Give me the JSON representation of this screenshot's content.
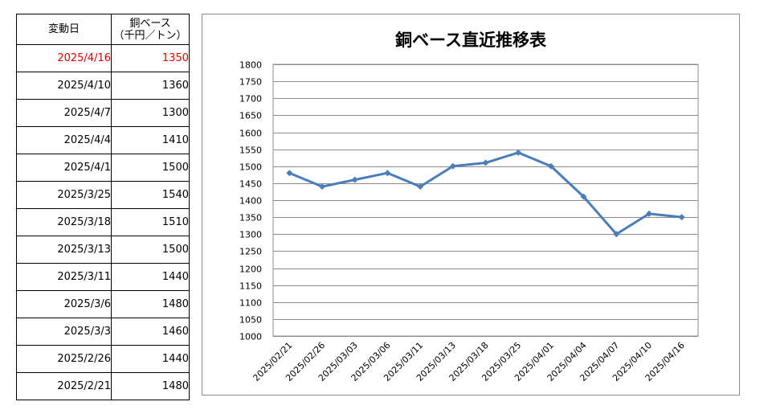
{
  "table": {
    "header_date": "変動日",
    "header_price_line1": "銅ベース",
    "header_price_line2": "（千円／トン）",
    "highlight_color": "#e00000",
    "rows": [
      {
        "date": "2025/4/16",
        "price": "1350"
      },
      {
        "date": "2025/4/10",
        "price": "1360"
      },
      {
        "date": "2025/4/7",
        "price": "1300"
      },
      {
        "date": "2025/4/4",
        "price": "1410"
      },
      {
        "date": "2025/4/1",
        "price": "1500"
      },
      {
        "date": "2025/3/25",
        "price": "1540"
      },
      {
        "date": "2025/3/18",
        "price": "1510"
      },
      {
        "date": "2025/3/13",
        "price": "1500"
      },
      {
        "date": "2025/3/11",
        "price": "1440"
      },
      {
        "date": "2025/3/6",
        "price": "1480"
      },
      {
        "date": "2025/3/3",
        "price": "1460"
      },
      {
        "date": "2025/2/26",
        "price": "1440"
      },
      {
        "date": "2025/2/21",
        "price": "1480"
      }
    ]
  },
  "chart_data": {
    "type": "line",
    "title": "銅ベース直近推移表",
    "xlabel": "",
    "ylabel": "",
    "categories": [
      "2025/02/21",
      "2025/02/26",
      "2025/03/03",
      "2025/03/06",
      "2025/03/11",
      "2025/03/13",
      "2025/03/18",
      "2025/03/25",
      "2025/04/01",
      "2025/04/04",
      "2025/04/07",
      "2025/04/10",
      "2025/04/16"
    ],
    "series": [
      {
        "values": [
          1480,
          1440,
          1460,
          1480,
          1440,
          1500,
          1510,
          1540,
          1500,
          1410,
          1300,
          1360,
          1350
        ]
      }
    ],
    "ylim": [
      1000,
      1800
    ],
    "yticks": [
      1000,
      1050,
      1100,
      1150,
      1200,
      1250,
      1300,
      1350,
      1400,
      1450,
      1500,
      1550,
      1600,
      1650,
      1700,
      1750,
      1800
    ],
    "grid": true,
    "line_color": "#4a7ebb",
    "marker": "diamond"
  }
}
